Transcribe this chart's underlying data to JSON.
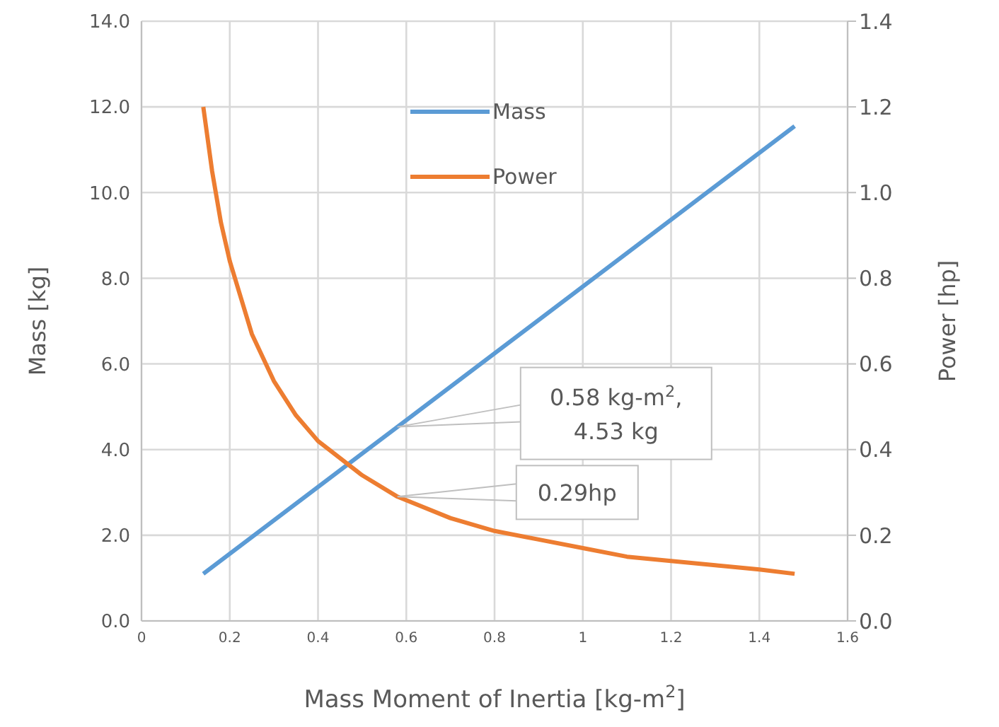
{
  "chart_data": {
    "type": "line",
    "xlabel": "Mass Moment of Inertia [kg-m$^{2}$]",
    "ylabel": "Mass [kg]",
    "y2label": "Power  [hp]",
    "xlim": [
      0,
      1.6
    ],
    "xticks": [
      0,
      0.2,
      0.4,
      0.6,
      0.8,
      1,
      1.2,
      1.4,
      1.6
    ],
    "ylim": [
      0,
      14
    ],
    "yticks": [
      {
        "value": 0,
        "label": "0.0"
      },
      {
        "value": 2,
        "label": "2.0"
      },
      {
        "value": 4,
        "label": "4.0"
      },
      {
        "value": 6,
        "label": "6.0"
      },
      {
        "value": 8,
        "label": "8.0"
      },
      {
        "value": 10,
        "label": "10.0"
      },
      {
        "value": 12,
        "label": "12.0"
      },
      {
        "value": 14,
        "label": "14.0"
      }
    ],
    "y2lim": [
      0,
      1.4
    ],
    "y2ticks": [
      {
        "value": 0,
        "label": "0.0"
      },
      0.2,
      0.4,
      0.6,
      0.8,
      {
        "value": 1,
        "label": "1.0"
      },
      1.2,
      1.4
    ],
    "series": [
      {
        "name": "Mass",
        "color": "#5b9bd5",
        "x": [
          0.14,
          0.58,
          1.48
        ],
        "values": [
          1.1,
          4.53,
          11.55
        ]
      },
      {
        "name": "Power",
        "color": "#ed7d31",
        "axis": "y2",
        "x": [
          0.14,
          0.16,
          0.18,
          0.2,
          0.25,
          0.3,
          0.35,
          0.4,
          0.5,
          0.58,
          0.7,
          0.8,
          0.9,
          1.0,
          1.1,
          1.2,
          1.3,
          1.4,
          1.48
        ],
        "values": [
          1.2,
          1.05,
          0.93,
          0.84,
          0.67,
          0.56,
          0.48,
          0.42,
          0.34,
          0.29,
          0.24,
          0.21,
          0.19,
          0.17,
          0.15,
          0.14,
          0.13,
          0.12,
          0.11
        ]
      }
    ],
    "annotations": [
      "0.58 kg-m$^{2}$,\n4.53 kg",
      "0.29hp"
    ],
    "grid": true,
    "legend": "top",
    "marker": "none",
    "line_style": "solid"
  }
}
